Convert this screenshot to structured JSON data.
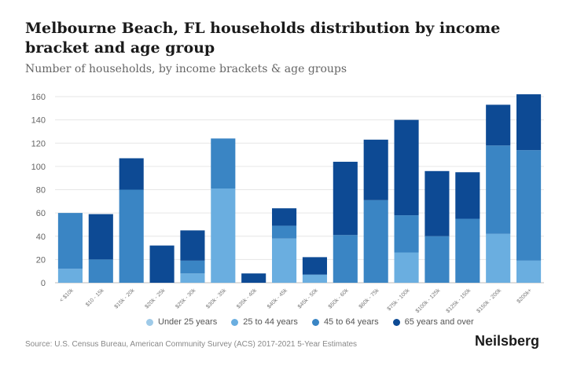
{
  "header": {
    "title": "Melbourne Beach, FL households distribution by income bracket and age group",
    "subtitle": "Number of households, by income brackets & age groups"
  },
  "footer": {
    "source": "Source: U.S. Census Bureau, American Community Survey (ACS) 2017-2021 5-Year Estimates",
    "brand": "Neilsberg"
  },
  "chart_data": {
    "type": "bar",
    "stacked": true,
    "title": "Melbourne Beach, FL households distribution by income bracket and age group",
    "subtitle": "Number of households, by income brackets & age groups",
    "xlabel": "",
    "ylabel": "",
    "ylim": [
      0,
      160
    ],
    "yticks": [
      0,
      20,
      40,
      60,
      80,
      100,
      120,
      140,
      160
    ],
    "grid": true,
    "legend_position": "bottom",
    "categories": [
      "< $10k",
      "$10 - 15k",
      "$15k - 20k",
      "$20k - 25k",
      "$25k - 30k",
      "$30k - 35k",
      "$35k - 40k",
      "$40k - 45k",
      "$45k - 50k",
      "$50k - 60k",
      "$60k - 75k",
      "$75k - 100k",
      "$100k - 125k",
      "$125k - 150k",
      "$150k - 200k",
      "$200k+"
    ],
    "series": [
      {
        "name": "Under 25 years",
        "color": "#9ecae8",
        "values": [
          0,
          0,
          0,
          0,
          0,
          0,
          0,
          0,
          0,
          0,
          0,
          0,
          0,
          0,
          0,
          0
        ]
      },
      {
        "name": "25 to 44 years",
        "color": "#6aaee0",
        "values": [
          12,
          0,
          0,
          0,
          8,
          81,
          0,
          38,
          7,
          0,
          0,
          26,
          0,
          0,
          42,
          19
        ]
      },
      {
        "name": "45 to 64 years",
        "color": "#3a85c4",
        "values": [
          48,
          20,
          80,
          0,
          11,
          43,
          0,
          11,
          0,
          41,
          71,
          32,
          40,
          55,
          76,
          95
        ]
      },
      {
        "name": "65 years and over",
        "color": "#0d4a94",
        "values": [
          0,
          39,
          27,
          32,
          26,
          0,
          8,
          15,
          15,
          63,
          52,
          82,
          56,
          40,
          35,
          48
        ]
      }
    ]
  }
}
